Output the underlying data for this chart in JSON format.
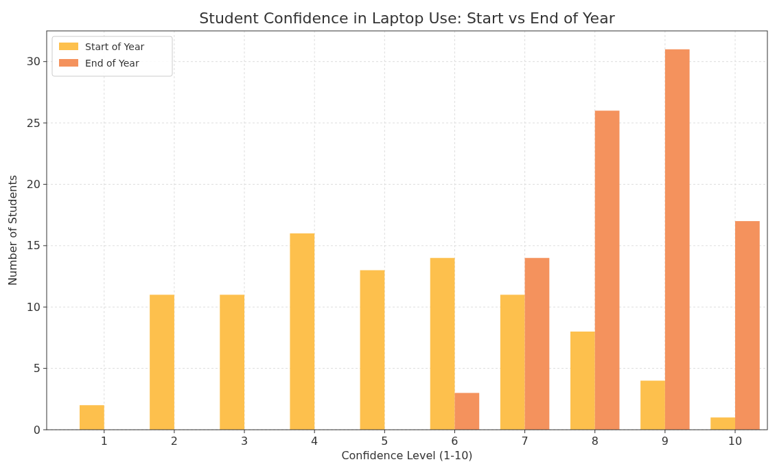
{
  "chart_data": {
    "type": "bar",
    "title": "Student Confidence in Laptop Use: Start vs End of Year",
    "xlabel": "Confidence Level (1-10)",
    "ylabel": "Number of Students",
    "categories": [
      "1",
      "2",
      "3",
      "4",
      "5",
      "6",
      "7",
      "8",
      "9",
      "10"
    ],
    "series": [
      {
        "name": "Start of Year",
        "color": "#fdc04d",
        "values": [
          2,
          11,
          11,
          16,
          13,
          14,
          11,
          8,
          4,
          1
        ]
      },
      {
        "name": "End of Year",
        "color": "#f4925d",
        "values": [
          0,
          0,
          0,
          0,
          0,
          3,
          14,
          26,
          31,
          17
        ]
      }
    ],
    "ylim": [
      0,
      32.5
    ],
    "yticks": [
      0,
      5,
      10,
      15,
      20,
      25,
      30
    ],
    "grid": true,
    "legend": "top left"
  }
}
